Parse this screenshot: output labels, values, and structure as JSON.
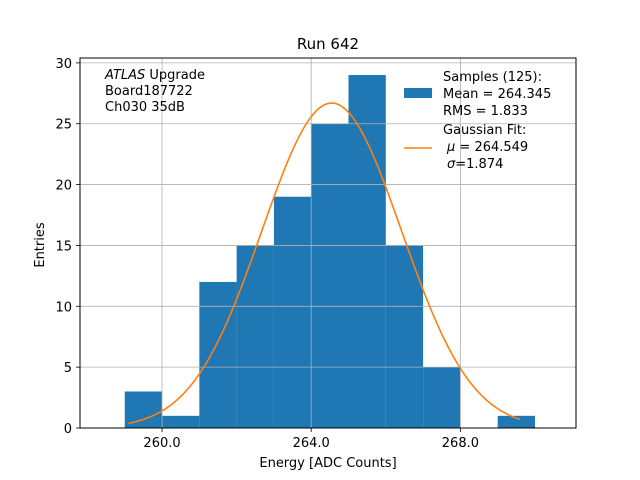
{
  "chart_data": {
    "type": "bar",
    "title": "Run 642",
    "xlabel": "Energy [ADC Counts]",
    "ylabel": "Entries",
    "xlim": [
      257.8,
      271.1
    ],
    "ylim": [
      0,
      30.4
    ],
    "grid": true,
    "x_ticks": [
      260,
      264,
      268
    ],
    "x_tick_labels": [
      "260.0",
      "264.0",
      "268.0"
    ],
    "y_ticks": [
      0,
      5,
      10,
      15,
      20,
      25,
      30
    ],
    "y_tick_labels": [
      "0",
      "5",
      "10",
      "15",
      "20",
      "25",
      "30"
    ],
    "bins": [
      {
        "x0": 259,
        "x1": 260,
        "count": 3
      },
      {
        "x0": 260,
        "x1": 261,
        "count": 1
      },
      {
        "x0": 261,
        "x1": 262,
        "count": 12
      },
      {
        "x0": 262,
        "x1": 263,
        "count": 15
      },
      {
        "x0": 263,
        "x1": 264,
        "count": 19
      },
      {
        "x0": 264,
        "x1": 265,
        "count": 25
      },
      {
        "x0": 265,
        "x1": 266,
        "count": 29
      },
      {
        "x0": 266,
        "x1": 267,
        "count": 15
      },
      {
        "x0": 267,
        "x1": 268,
        "count": 5
      },
      {
        "x0": 268,
        "x1": 269,
        "count": 0
      },
      {
        "x0": 269,
        "x1": 270,
        "count": 1
      }
    ],
    "fit": {
      "amplitude": 26.7,
      "mu": 264.549,
      "sigma": 1.874,
      "x_range": [
        259.1,
        269.6
      ]
    },
    "annotation_lines": [
      {
        "italic": "ATLAS",
        "rest": " Upgrade"
      },
      {
        "italic": "",
        "rest": " Board187722"
      },
      {
        "italic": "",
        "rest": " Ch030 35dB"
      }
    ],
    "legend": {
      "position": "top-right",
      "hist_lines": [
        "Samples (125):",
        " Mean = 264.345",
        " RMS = 1.833"
      ],
      "fit_lines": [
        {
          "sym": "",
          "rest": "Gaussian Fit:"
        },
        {
          "sym": "μ",
          "rest": " = 264.549"
        },
        {
          "sym": "σ",
          "rest": "=1.874"
        }
      ]
    },
    "colors": {
      "hist": "#1f77b4",
      "fit": "#ff7f0e",
      "grid": "#b0b0b0"
    }
  }
}
